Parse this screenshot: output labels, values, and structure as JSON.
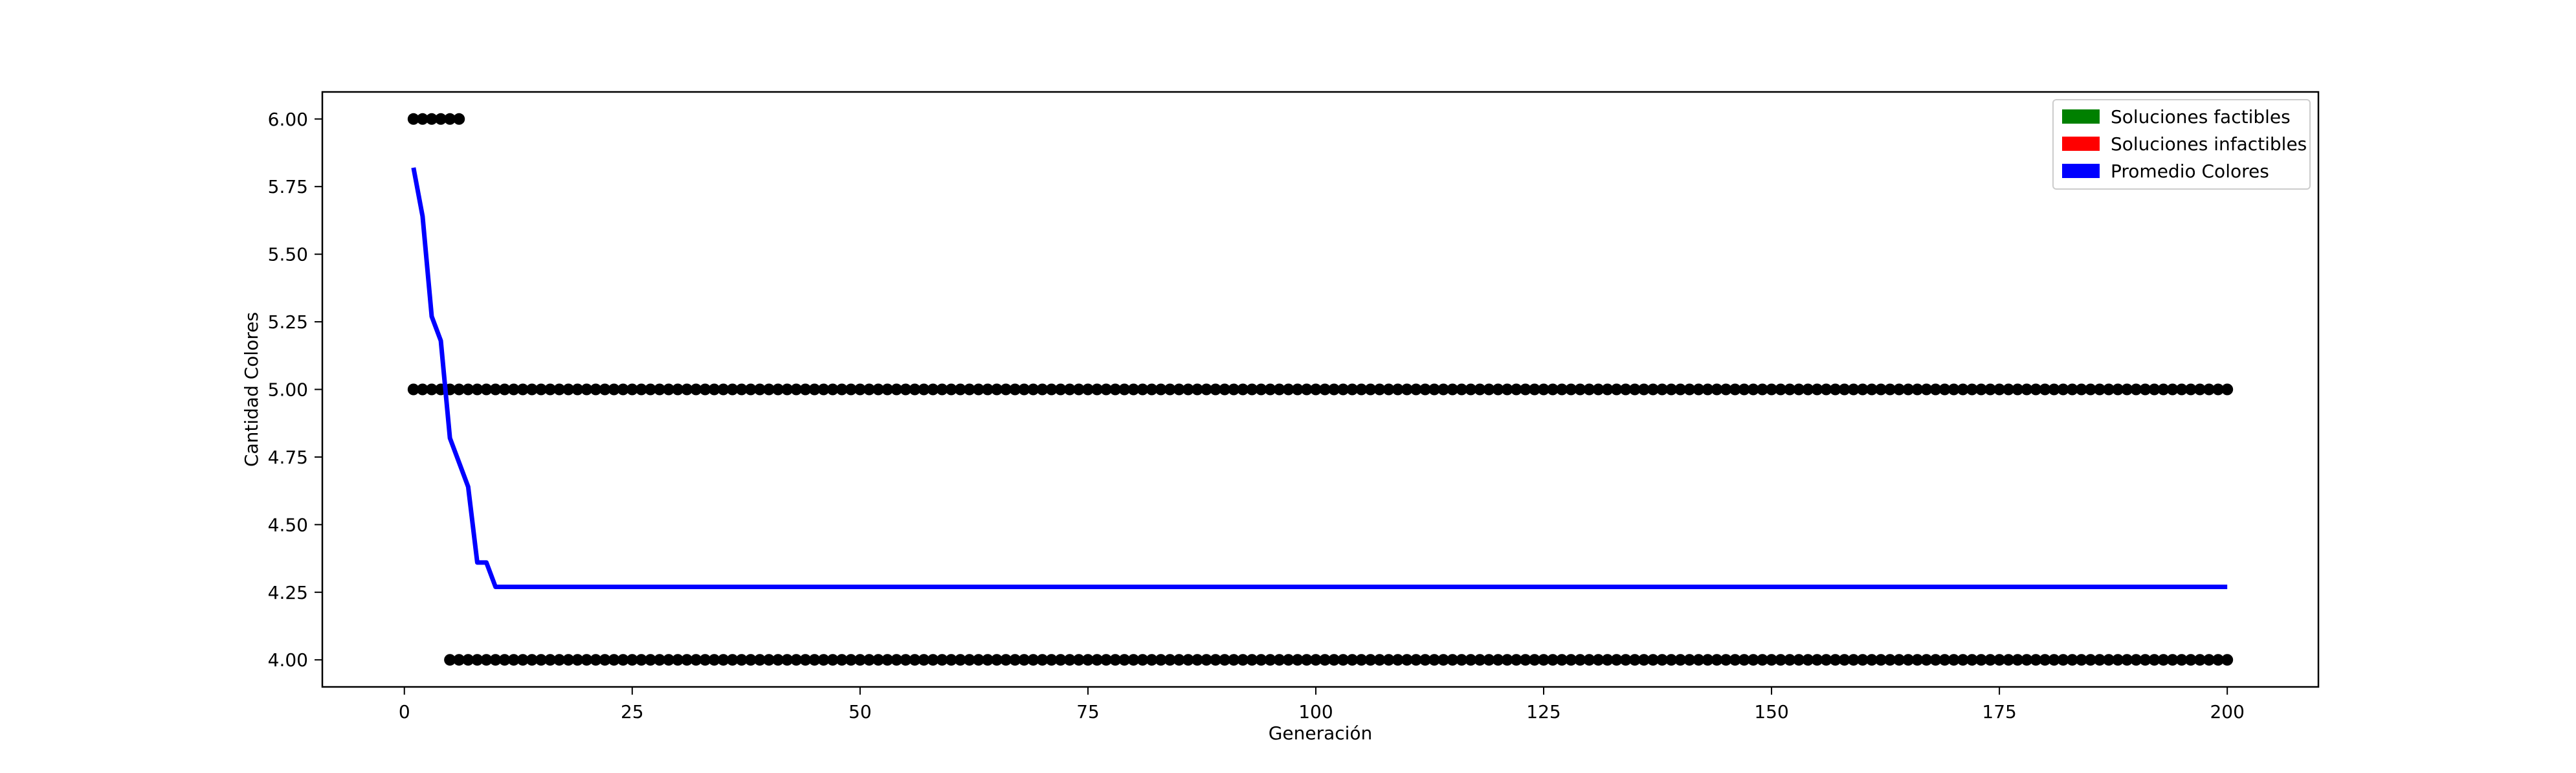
{
  "chart_data": {
    "type": "line",
    "xlabel": "Generación",
    "ylabel": "Cantidad Colores",
    "xlim": [
      -9,
      210
    ],
    "ylim": [
      3.9,
      6.1
    ],
    "x_ticks": [
      0,
      25,
      50,
      75,
      100,
      125,
      150,
      175,
      200
    ],
    "y_ticks": [
      4.0,
      4.25,
      4.5,
      4.75,
      5.0,
      5.25,
      5.5,
      5.75,
      6.0
    ],
    "y_tick_labels": [
      "4.00",
      "4.25",
      "4.50",
      "4.75",
      "5.00",
      "5.25",
      "5.50",
      "5.75",
      "6.00"
    ],
    "x_tick_labels": [
      "0",
      "25",
      "50",
      "75",
      "100",
      "125",
      "150",
      "175",
      "200"
    ],
    "grid": false,
    "legend": {
      "placement": "top-right",
      "entries": [
        {
          "label": "Soluciones factibles",
          "color": "#008000"
        },
        {
          "label": "Soluciones infactibles",
          "color": "#ff0000"
        },
        {
          "label": "Promedio Colores",
          "color": "#0000ff"
        }
      ]
    },
    "scatter_series": [
      {
        "y": 6.0,
        "x_from": 1,
        "x_to": 6,
        "color": "#000000"
      },
      {
        "y": 5.0,
        "x_from": 1,
        "x_to": 200,
        "color": "#000000"
      },
      {
        "y": 4.0,
        "x_from": 5,
        "x_to": 200,
        "color": "#000000"
      }
    ],
    "series": [
      {
        "color": "#0000ff",
        "x": [
          1,
          2,
          3,
          4,
          5,
          6,
          7,
          8,
          9,
          10,
          200
        ],
        "values": [
          5.82,
          5.64,
          5.27,
          5.18,
          4.82,
          4.73,
          4.64,
          4.36,
          4.36,
          4.27,
          4.27
        ]
      }
    ]
  }
}
